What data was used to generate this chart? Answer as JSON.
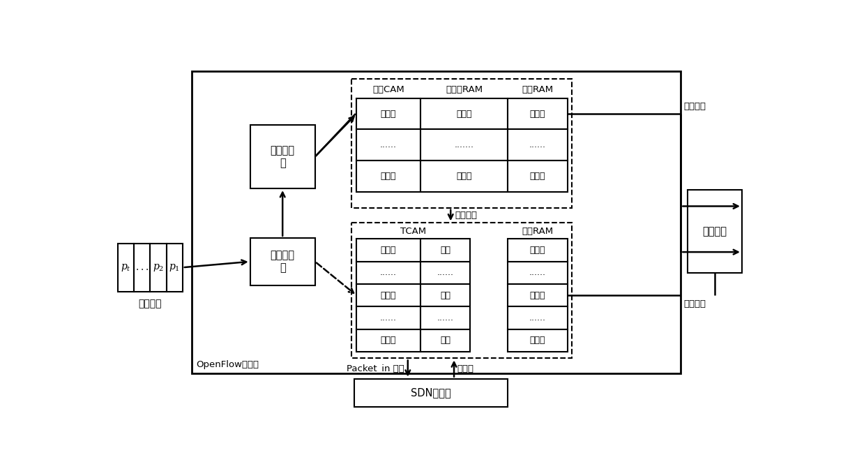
{
  "openflow_label": "OpenFlow交换机",
  "packet_label": "数据分组",
  "gen_sig_label": "生成签名\n值",
  "extract_label": "提取关键\n字",
  "cam_title": "签名CAM",
  "kw_ram_title": "关键字RAM",
  "fwd_ram_title1": "转发RAM",
  "tcam_title": "TCAM",
  "fwd_ram_title2": "转发RAM",
  "exec_label": "执行动作",
  "sdn_label": "SDN控制器",
  "predict_fail": "预测失败",
  "predict_success": "预测成功",
  "match_success": "匹配成功",
  "packet_in": "Packet_in 消息",
  "new_rule": "新规则",
  "cam_col1_rows": [
    "签名值",
    "......",
    "签名值"
  ],
  "cam_col2_rows": [
    "关键字",
    ".......",
    "关键字"
  ],
  "cam_col3_rows": [
    "动作集",
    "......",
    "动作集"
  ],
  "tcam_col1_rows": [
    "匹配域",
    "......",
    "匹配域",
    "......",
    "匹配域"
  ],
  "tcam_col2_rows": [
    "掩码",
    "......",
    "掩码",
    "......",
    "掩码"
  ],
  "tcam_col3_rows": [
    "动作集",
    "......",
    "动作集",
    "......",
    "动作集"
  ]
}
